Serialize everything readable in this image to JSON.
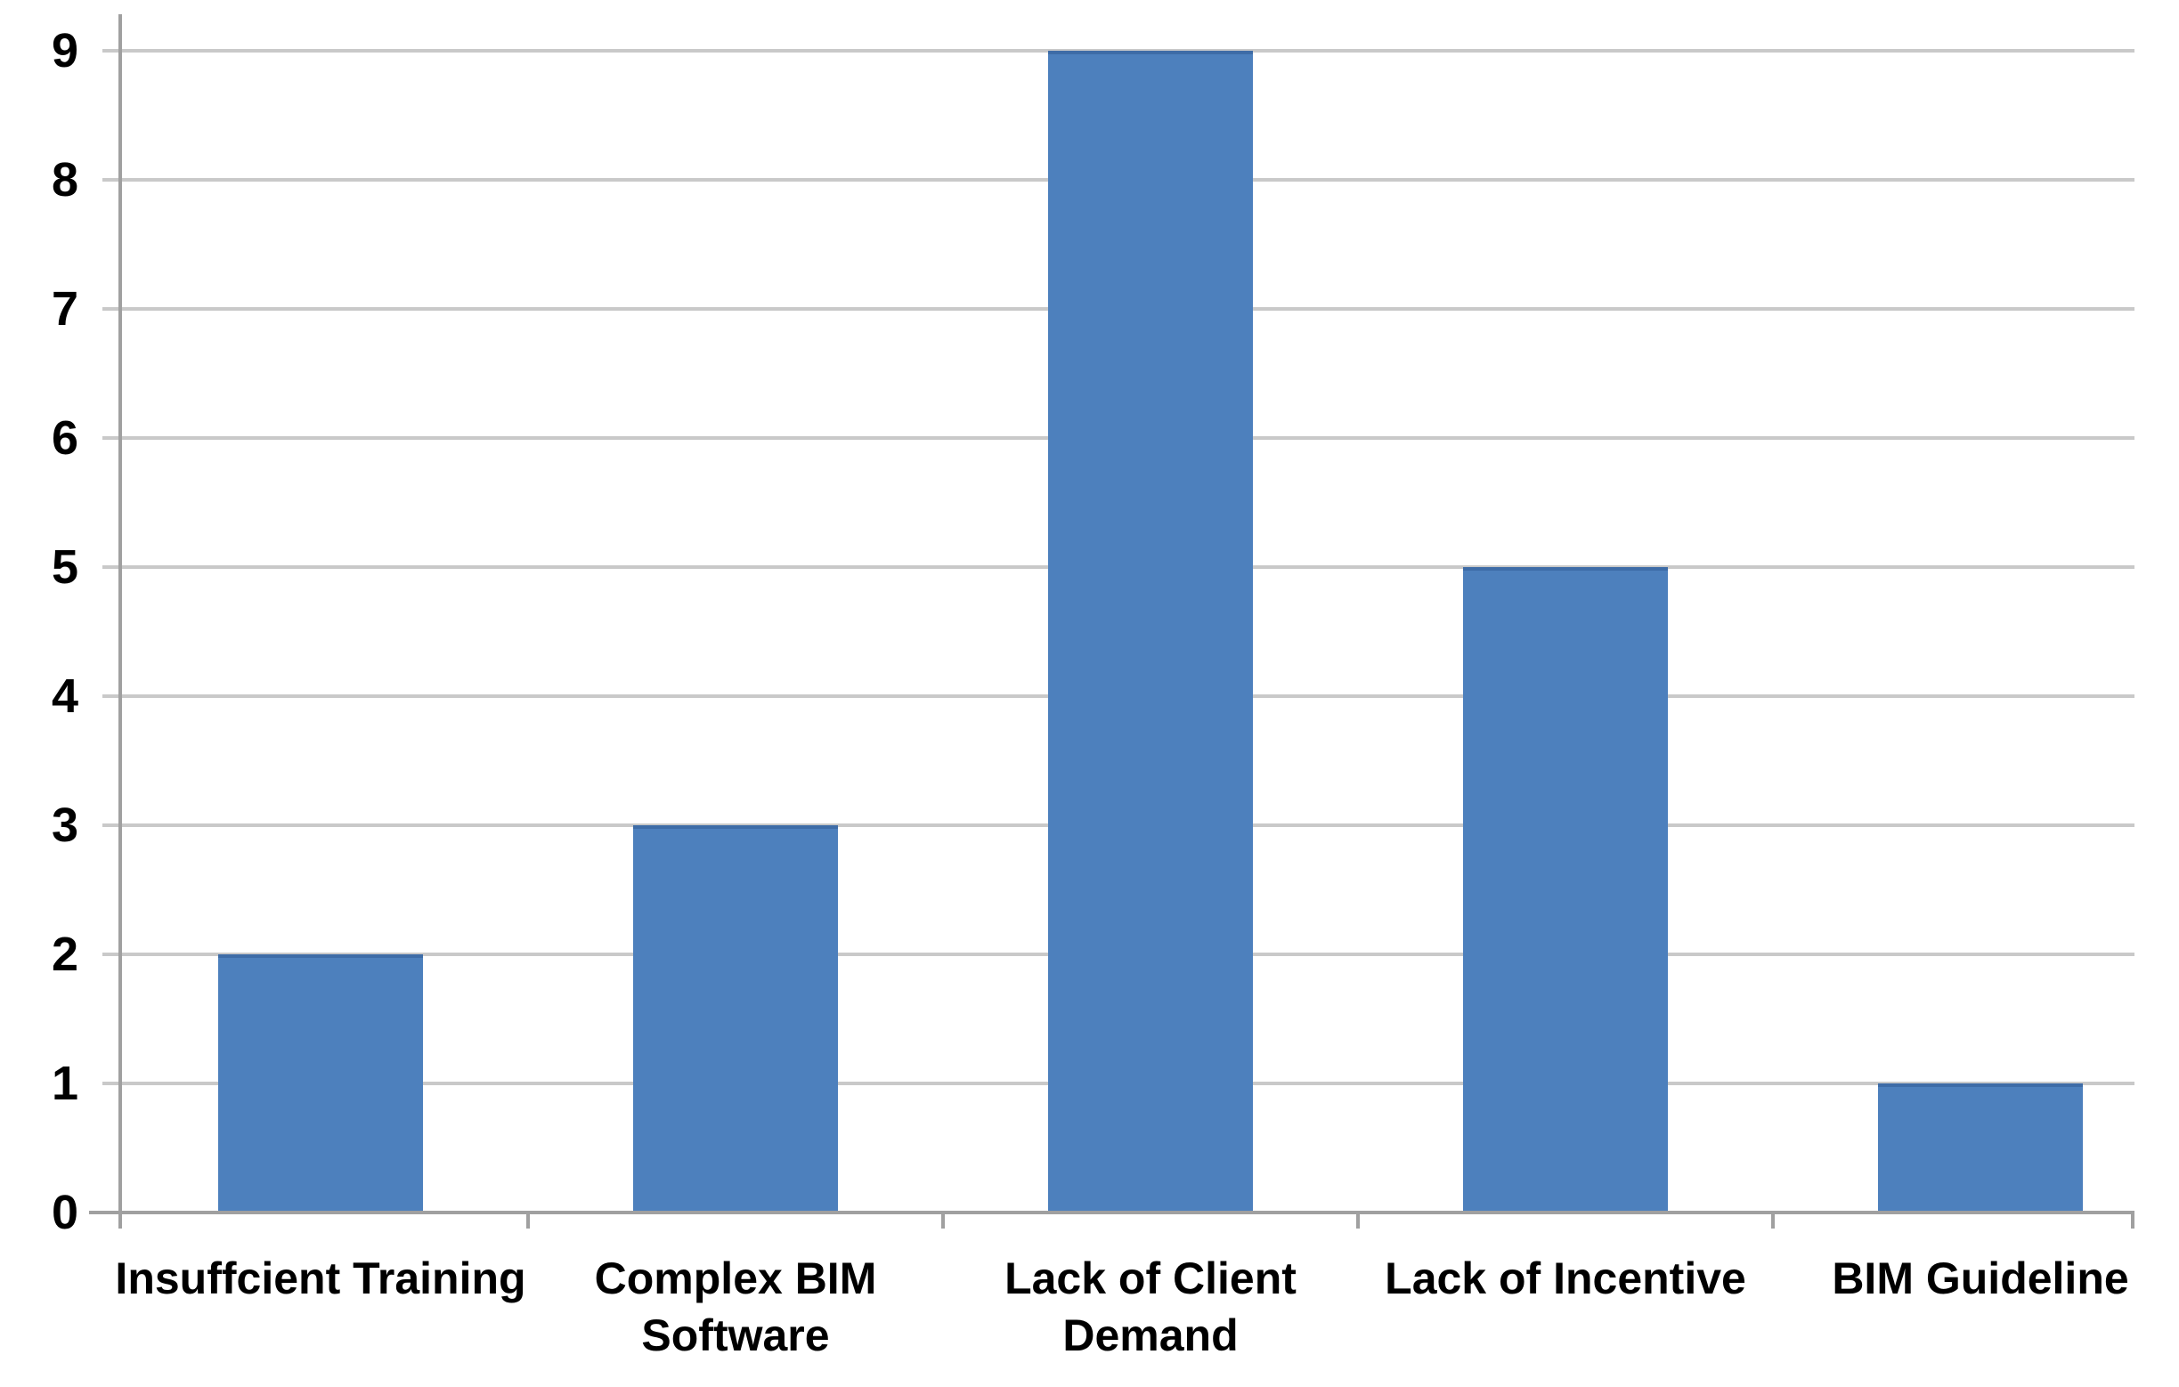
{
  "chart_data": {
    "type": "bar",
    "title": "",
    "xlabel": "",
    "ylabel": "",
    "categories": [
      "Insuffcient Training",
      "Complex BIM Software",
      "Lack of Client Demand",
      "Lack of Incentive",
      "BIM Guideline"
    ],
    "values": [
      2,
      3,
      9,
      5,
      1
    ],
    "category_label_lines": [
      [
        "Insuffcient Training"
      ],
      [
        "Complex BIM",
        "Software"
      ],
      [
        "Lack of Client",
        "Demand"
      ],
      [
        "Lack of Incentive"
      ],
      [
        "BIM Guideline"
      ]
    ],
    "ylim": [
      0,
      9
    ],
    "ytick_interval": 1,
    "ytick_labels": [
      "0",
      "1",
      "2",
      "3",
      "4",
      "5",
      "6",
      "7",
      "8",
      "9"
    ],
    "grid": true,
    "legend": false,
    "colors": {
      "bar": "#4d80bd",
      "bar_top_edge": "#3e6ca7",
      "gridline": "#c9c9c9",
      "axis": "#a0a0a0",
      "text": "#000000",
      "background": "#ffffff"
    }
  }
}
